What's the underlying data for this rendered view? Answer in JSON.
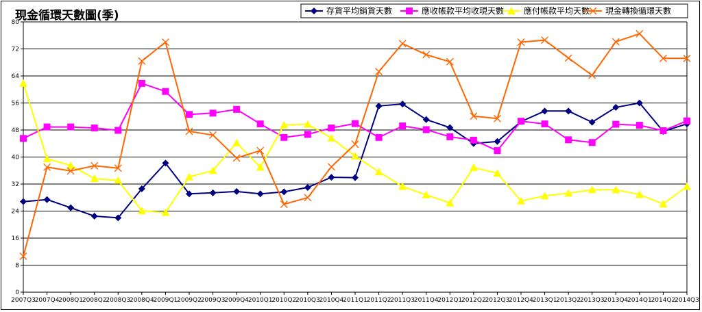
{
  "chart_data": {
    "type": "line",
    "title": "現金循環天數圖(季)",
    "xlabel": "",
    "ylabel": "",
    "ylim": [
      0,
      80
    ],
    "yticks": [
      0,
      8,
      16,
      24,
      32,
      40,
      48,
      56,
      64,
      72,
      80
    ],
    "grid": true,
    "legend_position": "top-right",
    "categories": [
      "2007Q3",
      "2007Q4",
      "2008Q1",
      "2008Q2",
      "2008Q3",
      "2008Q4",
      "2009Q1",
      "2009Q2",
      "2009Q3",
      "2009Q4",
      "2010Q1",
      "2010Q2",
      "2010Q3",
      "2010Q4",
      "2011Q1",
      "2011Q2",
      "2011Q3",
      "2011Q4",
      "2012Q1",
      "2012Q2",
      "2012Q3",
      "2012Q4",
      "2013Q1",
      "2013Q2",
      "2013Q3",
      "2013Q4",
      "2014Q1",
      "2014Q2",
      "2014Q3"
    ],
    "series": [
      {
        "name": "存貨平均銷貨天數",
        "color": "#000080",
        "marker": "diamond",
        "values": [
          26.8,
          27.4,
          25.0,
          22.5,
          22.0,
          30.6,
          38.2,
          29.1,
          29.4,
          29.8,
          29.1,
          29.7,
          31.0,
          34.0,
          33.9,
          55.1,
          55.7,
          51.1,
          48.7,
          44.0,
          44.6,
          50.5,
          53.6,
          53.6,
          50.3,
          54.7,
          56.0,
          47.6,
          49.8
        ]
      },
      {
        "name": "應收帳款平均收現天數",
        "color": "#FF00FF",
        "marker": "square",
        "values": [
          45.5,
          48.9,
          48.9,
          48.6,
          47.9,
          61.8,
          59.4,
          52.6,
          53.0,
          54.1,
          49.8,
          45.8,
          46.7,
          48.6,
          49.9,
          45.8,
          49.2,
          48.1,
          46.0,
          45.0,
          41.9,
          50.6,
          49.8,
          45.1,
          44.3,
          49.7,
          49.4,
          47.8,
          50.7
        ]
      },
      {
        "name": "應付帳款平均天數",
        "color": "#FFFF00",
        "marker": "triangle",
        "values": [
          61.8,
          39.5,
          37.5,
          33.6,
          33.1,
          24.1,
          23.6,
          34.1,
          36.0,
          44.2,
          37.0,
          49.5,
          49.7,
          45.6,
          40.3,
          35.6,
          31.3,
          28.8,
          26.4,
          36.9,
          35.2,
          27.0,
          28.5,
          29.3,
          30.3,
          30.3,
          28.9,
          26.1,
          31.3
        ]
      },
      {
        "name": "現金轉換循環天數",
        "color": "#FF6600",
        "marker": "x",
        "values": [
          10.6,
          37.0,
          35.9,
          37.4,
          36.7,
          68.4,
          74.0,
          47.6,
          46.5,
          39.7,
          41.9,
          26.0,
          28.0,
          37.1,
          43.8,
          65.3,
          73.6,
          70.3,
          68.2,
          52.1,
          51.4,
          74.0,
          74.6,
          69.3,
          64.2,
          74.1,
          76.5,
          69.2,
          69.2
        ]
      }
    ]
  }
}
